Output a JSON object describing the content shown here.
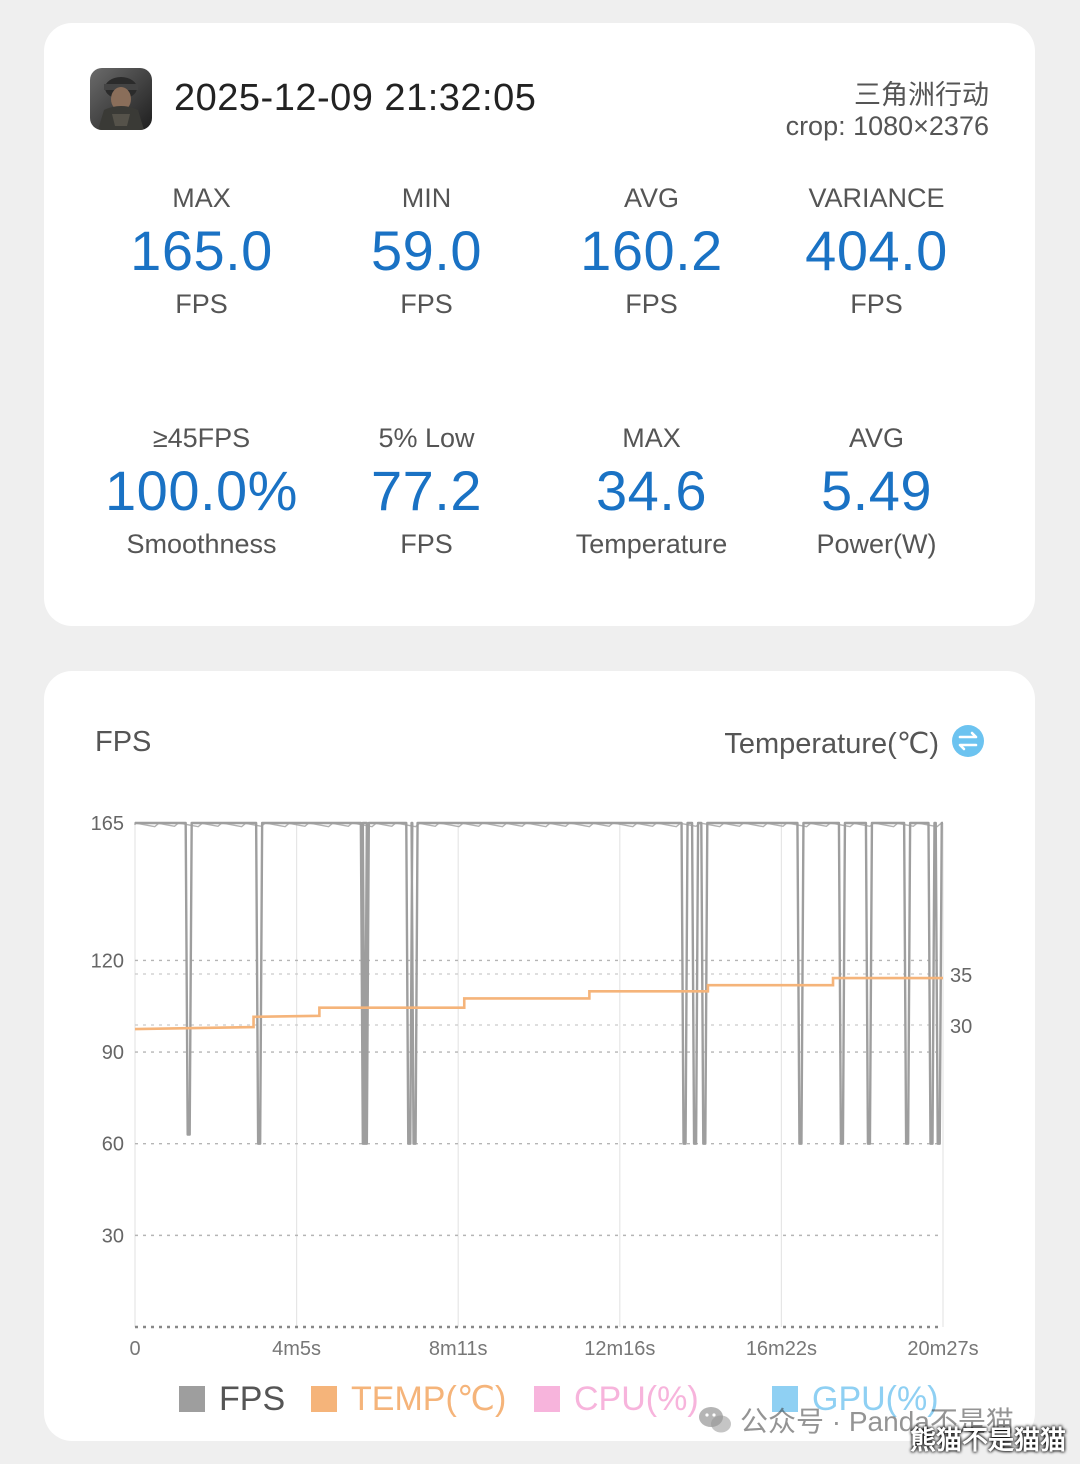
{
  "summary": {
    "app_icon": "game-soldier-icon",
    "timestamp": "2025-12-09 21:32:05",
    "game_name": "三角洲行动",
    "crop": "crop: 1080×2376",
    "metrics": [
      {
        "label": "MAX",
        "value": "165.0",
        "unit": "FPS"
      },
      {
        "label": "MIN",
        "value": "59.0",
        "unit": "FPS"
      },
      {
        "label": "AVG",
        "value": "160.2",
        "unit": "FPS"
      },
      {
        "label": "VARIANCE",
        "value": "404.0",
        "unit": "FPS"
      },
      {
        "label": "≥45FPS",
        "value": "100.0%",
        "unit": "Smoothness"
      },
      {
        "label": "5% Low",
        "value": "77.2",
        "unit": "FPS"
      },
      {
        "label": "MAX",
        "value": "34.6",
        "unit": "Temperature"
      },
      {
        "label": "AVG",
        "value": "5.49",
        "unit": "Power(W)"
      }
    ],
    "value_color": "#1a72c4"
  },
  "chart_header": {
    "left_title": "FPS",
    "right_title": "Temperature(℃)",
    "toggle_icon": "swap-icon"
  },
  "legend": [
    {
      "label": "FPS",
      "color": "#9e9e9e"
    },
    {
      "label": "TEMP(℃)",
      "color": "#f5b47a"
    },
    {
      "label": "CPU(%)",
      "color": "#f7b4dc"
    },
    {
      "label": "GPU(%)",
      "color": "#8fd0f3"
    }
  ],
  "watermark": {
    "text": "公众号 · Panda不是猫",
    "author": "熊猫不是猫猫",
    "logo": "wechat-icon"
  },
  "chart_data": {
    "type": "line",
    "x_ticks": [
      "0",
      "4m5s",
      "8m11s",
      "12m16s",
      "16m22s",
      "20m27s"
    ],
    "x_range_seconds": [
      0,
      1227
    ],
    "y_left_ticks": [
      165,
      120,
      90,
      60,
      30
    ],
    "y_left_range": [
      0,
      165
    ],
    "y_right_ticks": [
      35,
      30
    ],
    "grid": true,
    "legend_position": "bottom",
    "fps_baseline": 165,
    "fps_dips": [
      {
        "t": 80,
        "fps": 63
      },
      {
        "t": 187,
        "fps": 60
      },
      {
        "t": 346,
        "fps": 60
      },
      {
        "t": 349,
        "fps": 60
      },
      {
        "t": 415,
        "fps": 60
      },
      {
        "t": 423,
        "fps": 60
      },
      {
        "t": 833,
        "fps": 60
      },
      {
        "t": 849,
        "fps": 60
      },
      {
        "t": 863,
        "fps": 60
      },
      {
        "t": 1009,
        "fps": 60
      },
      {
        "t": 1072,
        "fps": 60
      },
      {
        "t": 1113,
        "fps": 60
      },
      {
        "t": 1171,
        "fps": 60
      },
      {
        "t": 1208,
        "fps": 60
      },
      {
        "t": 1219,
        "fps": 60
      }
    ],
    "temp_series": {
      "name": "TEMP(℃)",
      "x_seconds": [
        0,
        180,
        180,
        280,
        280,
        500,
        500,
        690,
        690,
        870,
        870,
        1060,
        1060,
        1227
      ],
      "y_celsius": [
        29.6,
        29.8,
        30.8,
        30.9,
        31.7,
        31.7,
        32.6,
        32.6,
        33.3,
        33.3,
        33.9,
        33.9,
        34.6,
        34.6
      ]
    }
  }
}
